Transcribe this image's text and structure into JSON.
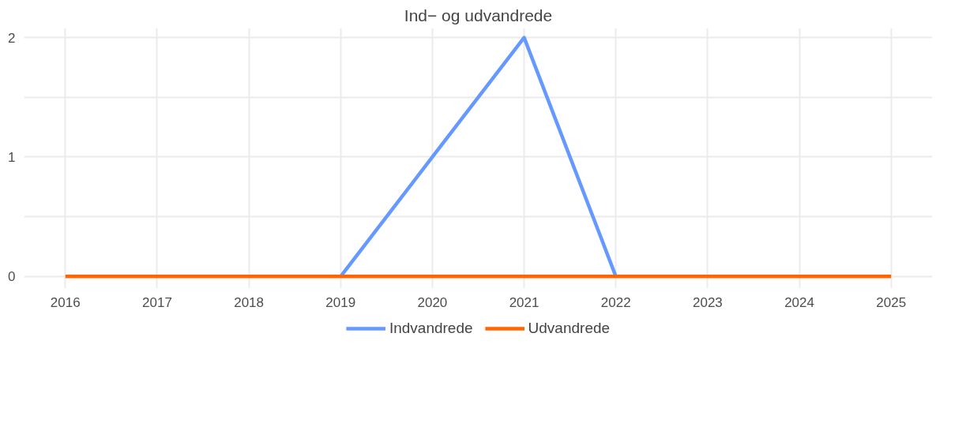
{
  "chart_data": {
    "type": "line",
    "title": "Ind− og udvandrede",
    "x": [
      2016,
      2017,
      2018,
      2019,
      2020,
      2021,
      2022,
      2023,
      2024,
      2025
    ],
    "series": [
      {
        "name": "Indvandrede",
        "color": "#6699ff",
        "values": [
          null,
          null,
          null,
          0,
          1,
          2,
          0,
          null,
          null,
          null
        ]
      },
      {
        "name": "Udvandrede",
        "color": "#ff6600",
        "values": [
          0,
          0,
          0,
          0,
          0,
          0,
          0,
          0,
          0,
          0
        ]
      }
    ],
    "xlim": [
      2015.55,
      2025.45
    ],
    "xticks": [
      2016,
      2017,
      2018,
      2019,
      2020,
      2021,
      2022,
      2023,
      2024,
      2025
    ],
    "ylim": [
      -0.1,
      2.08
    ],
    "yticks": [
      0,
      {
        "value": 0.5,
        "label": null
      },
      1,
      {
        "value": 1.5,
        "label": null
      },
      2
    ],
    "grid": true,
    "legend": "bottom",
    "marker": "none",
    "line_style": "solid"
  }
}
